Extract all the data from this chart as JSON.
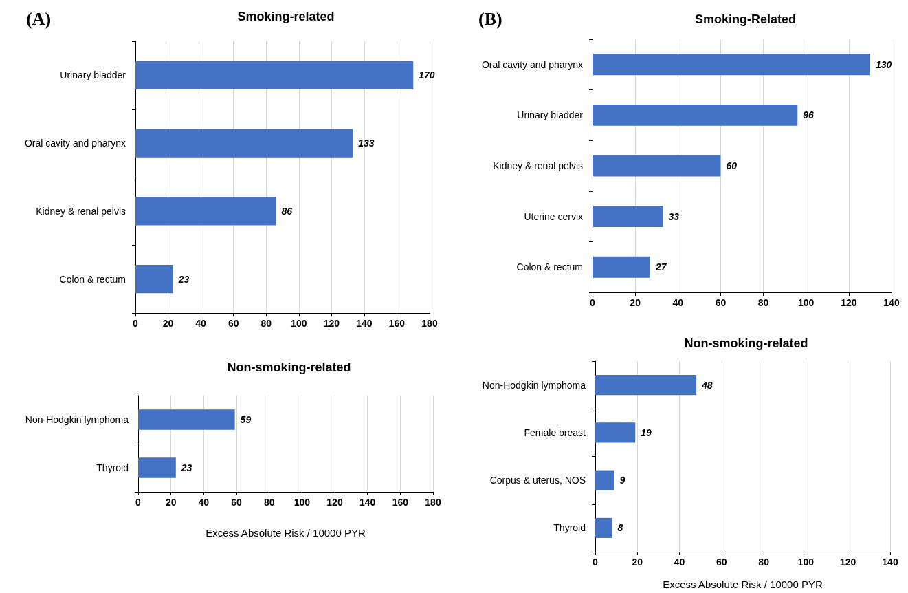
{
  "chart_data": [
    {
      "type": "bar",
      "orientation": "horizontal",
      "title": "Smoking-related",
      "annotations": [
        "(A)"
      ],
      "categories": [
        "Urinary bladder",
        "Oral cavity and pharynx",
        "Kidney & renal pelvis",
        "Colon & rectum"
      ],
      "values": [
        170,
        133,
        86,
        23
      ],
      "color": "#4472c4",
      "xlim": [
        0,
        180
      ],
      "xticks": [
        0,
        20,
        40,
        60,
        80,
        100,
        120,
        140,
        160,
        180
      ],
      "grid": "x",
      "data_labels": true
    },
    {
      "type": "bar",
      "orientation": "horizontal",
      "title": "Non-smoking-related",
      "xlabel": "Excess Absolute Risk / 10000 PYR",
      "categories": [
        "Non-Hodgkin lymphoma",
        "Thyroid"
      ],
      "values": [
        59,
        23
      ],
      "color": "#4472c4",
      "xlim": [
        0,
        180
      ],
      "xticks": [
        0,
        20,
        40,
        60,
        80,
        100,
        120,
        140,
        160,
        180
      ],
      "grid": "x",
      "data_labels": true
    },
    {
      "type": "bar",
      "orientation": "horizontal",
      "title": "Smoking-Related",
      "annotations": [
        "(B)"
      ],
      "categories": [
        "Oral cavity and pharynx",
        "Urinary bladder",
        "Kidney & renal pelvis",
        "Uterine cervix",
        "Colon & rectum"
      ],
      "values": [
        130,
        96,
        60,
        33,
        27
      ],
      "color": "#4472c4",
      "xlim": [
        0,
        140
      ],
      "xticks": [
        0,
        20,
        40,
        60,
        80,
        100,
        120,
        140
      ],
      "grid": "x",
      "data_labels": true
    },
    {
      "type": "bar",
      "orientation": "horizontal",
      "title": "Non-smoking-related",
      "xlabel": "Excess Absolute Risk / 10000 PYR",
      "categories": [
        "Non-Hodgkin lymphoma",
        "Female breast",
        "Corpus & uterus, NOS",
        "Thyroid"
      ],
      "values": [
        48,
        19,
        9,
        8
      ],
      "color": "#4472c4",
      "xlim": [
        0,
        140
      ],
      "xticks": [
        0,
        20,
        40,
        60,
        80,
        100,
        120,
        140
      ],
      "grid": "x",
      "data_labels": true
    }
  ]
}
